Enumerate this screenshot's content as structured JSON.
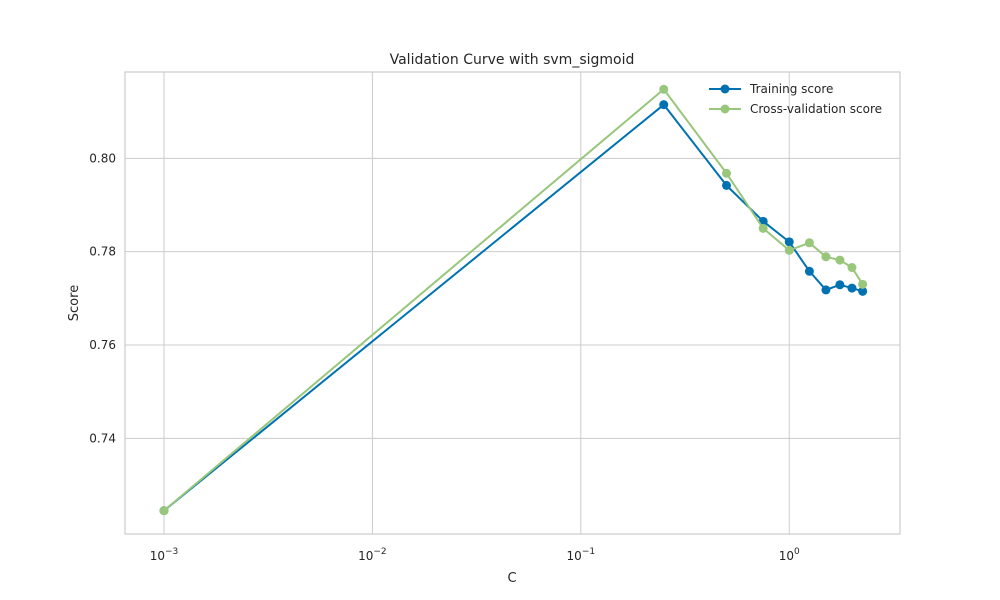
{
  "chart_data": {
    "type": "line",
    "title": "Validation Curve with svm_sigmoid",
    "xlabel": "C",
    "ylabel": "Score",
    "xscale": "log",
    "xlim": [
      0.00065,
      3.4
    ],
    "ylim": [
      0.7195,
      0.8185
    ],
    "x_ticks": [
      0.001,
      0.01,
      0.1,
      1
    ],
    "x_tick_labels": [
      {
        "base": "10",
        "exp": "−3"
      },
      {
        "base": "10",
        "exp": "−2"
      },
      {
        "base": "10",
        "exp": "−1"
      },
      {
        "base": "10",
        "exp": "0"
      }
    ],
    "y_ticks": [
      0.74,
      0.76,
      0.78,
      0.8
    ],
    "y_tick_labels": [
      "0.74",
      "0.76",
      "0.78",
      "0.80"
    ],
    "grid": true,
    "legend_position": "top-right",
    "x": [
      0.001,
      0.25,
      0.5,
      0.75,
      1.0,
      1.25,
      1.5,
      1.75,
      2.0,
      2.25
    ],
    "series": [
      {
        "name": "Training score",
        "color": "#0072B2",
        "values": [
          0.7245,
          0.8115,
          0.7942,
          0.7865,
          0.7821,
          0.7758,
          0.7718,
          0.7729,
          0.7722,
          0.7715
        ]
      },
      {
        "name": "Cross-validation score",
        "color": "#98C67B",
        "values": [
          0.7245,
          0.8148,
          0.7968,
          0.785,
          0.7803,
          0.7819,
          0.7789,
          0.7782,
          0.7766,
          0.773
        ]
      }
    ]
  }
}
